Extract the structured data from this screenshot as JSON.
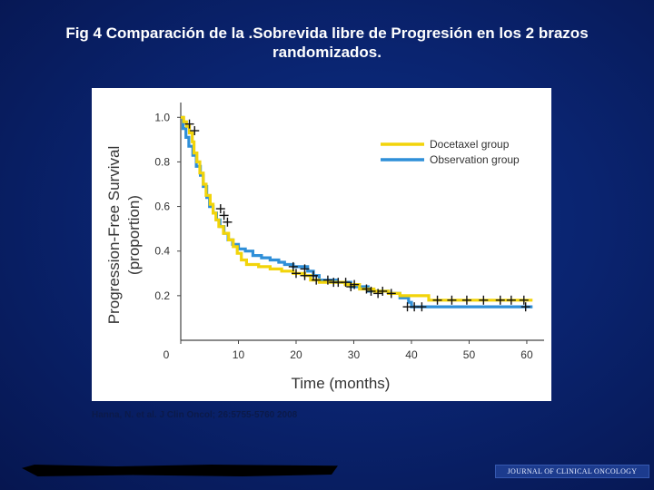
{
  "slide": {
    "title_line1": "Fig 4 Comparación de la .Sobrevida libre de Progresión  en los 2 brazos",
    "title_line2": "randomizados."
  },
  "citation": "Hanna, N. et al. J Clin Oncol; 26:5755-5760 2008",
  "journal": "JOURNAL OF CLINICAL ONCOLOGY",
  "colors": {
    "docetaxel": "#f2d40a",
    "observation": "#2f8fd8",
    "background": "#0a2470"
  },
  "chart_data": {
    "type": "line",
    "title": "",
    "xlabel": "Time (months)",
    "ylabel": "Progression-Free Survival",
    "ylabel2": "(proportion)",
    "xlim": [
      0,
      63
    ],
    "ylim": [
      0,
      1.05
    ],
    "xticks": [
      0,
      10,
      20,
      30,
      40,
      50,
      60
    ],
    "yticks": [
      0.2,
      0.4,
      0.6,
      0.8,
      1.0
    ],
    "xtick_labels": [
      "0",
      "10",
      "20",
      "30",
      "40",
      "50",
      "60"
    ],
    "ytick_labels": [
      "0.2",
      "0.4",
      "0.6",
      "0.8",
      "1.0"
    ],
    "legend_position": "top-right",
    "series": [
      {
        "name": "Docetaxel group",
        "color": "#f2d40a",
        "step_points": [
          [
            0,
            1.0
          ],
          [
            0.5,
            1.0
          ],
          [
            0.5,
            0.98
          ],
          [
            1,
            0.98
          ],
          [
            1,
            0.96
          ],
          [
            1.5,
            0.96
          ],
          [
            1.5,
            0.93
          ],
          [
            2,
            0.93
          ],
          [
            2,
            0.89
          ],
          [
            2.3,
            0.89
          ],
          [
            2.3,
            0.84
          ],
          [
            2.8,
            0.84
          ],
          [
            2.8,
            0.8
          ],
          [
            3.3,
            0.8
          ],
          [
            3.3,
            0.75
          ],
          [
            3.9,
            0.75
          ],
          [
            3.9,
            0.7
          ],
          [
            4.4,
            0.7
          ],
          [
            4.4,
            0.65
          ],
          [
            5.1,
            0.65
          ],
          [
            5.1,
            0.61
          ],
          [
            5.6,
            0.61
          ],
          [
            5.6,
            0.57
          ],
          [
            6.1,
            0.57
          ],
          [
            6.1,
            0.54
          ],
          [
            6.6,
            0.54
          ],
          [
            6.6,
            0.51
          ],
          [
            7.4,
            0.51
          ],
          [
            7.4,
            0.48
          ],
          [
            8.3,
            0.48
          ],
          [
            8.3,
            0.45
          ],
          [
            9.1,
            0.45
          ],
          [
            9.1,
            0.42
          ],
          [
            9.8,
            0.42
          ],
          [
            9.8,
            0.39
          ],
          [
            10.5,
            0.39
          ],
          [
            10.5,
            0.36
          ],
          [
            11.4,
            0.36
          ],
          [
            11.4,
            0.34
          ],
          [
            13.5,
            0.34
          ],
          [
            13.5,
            0.33
          ],
          [
            15.5,
            0.33
          ],
          [
            15.5,
            0.32
          ],
          [
            17.5,
            0.32
          ],
          [
            17.5,
            0.31
          ],
          [
            19.5,
            0.31
          ],
          [
            19.5,
            0.3
          ],
          [
            21.5,
            0.3
          ],
          [
            21.5,
            0.29
          ],
          [
            22.5,
            0.29
          ],
          [
            22.5,
            0.27
          ],
          [
            24,
            0.27
          ],
          [
            24,
            0.26
          ],
          [
            28.5,
            0.26
          ],
          [
            28.5,
            0.25
          ],
          [
            31,
            0.25
          ],
          [
            31,
            0.23
          ],
          [
            33.5,
            0.23
          ],
          [
            33.5,
            0.22
          ],
          [
            36,
            0.22
          ],
          [
            36,
            0.21
          ],
          [
            38,
            0.21
          ],
          [
            38,
            0.2
          ],
          [
            43,
            0.2
          ],
          [
            43,
            0.18
          ],
          [
            61,
            0.18
          ]
        ],
        "censor_points": [
          [
            20,
            0.3
          ],
          [
            21.5,
            0.29
          ],
          [
            23.5,
            0.27
          ],
          [
            27.3,
            0.26
          ],
          [
            28.6,
            0.26
          ],
          [
            30.1,
            0.25
          ],
          [
            32.2,
            0.23
          ],
          [
            35,
            0.22
          ],
          [
            36.5,
            0.21
          ],
          [
            44.5,
            0.18
          ],
          [
            47,
            0.18
          ],
          [
            49.6,
            0.18
          ],
          [
            52.5,
            0.18
          ],
          [
            55.4,
            0.18
          ],
          [
            57.3,
            0.18
          ],
          [
            59.5,
            0.18
          ]
        ]
      },
      {
        "name": "Observation group",
        "color": "#2f8fd8",
        "step_points": [
          [
            0,
            1.0
          ],
          [
            0.4,
            1.0
          ],
          [
            0.4,
            0.95
          ],
          [
            0.9,
            0.95
          ],
          [
            0.9,
            0.91
          ],
          [
            1.4,
            0.91
          ],
          [
            1.4,
            0.87
          ],
          [
            2.1,
            0.87
          ],
          [
            2.1,
            0.83
          ],
          [
            2.7,
            0.83
          ],
          [
            2.7,
            0.78
          ],
          [
            3.4,
            0.78
          ],
          [
            3.4,
            0.74
          ],
          [
            3.9,
            0.74
          ],
          [
            3.9,
            0.69
          ],
          [
            4.5,
            0.69
          ],
          [
            4.5,
            0.64
          ],
          [
            5,
            0.64
          ],
          [
            5,
            0.6
          ],
          [
            5.6,
            0.6
          ],
          [
            5.6,
            0.57
          ],
          [
            6.2,
            0.57
          ],
          [
            6.2,
            0.54
          ],
          [
            6.8,
            0.54
          ],
          [
            6.8,
            0.51
          ],
          [
            7.5,
            0.51
          ],
          [
            7.5,
            0.48
          ],
          [
            8.2,
            0.48
          ],
          [
            8.2,
            0.45
          ],
          [
            9,
            0.45
          ],
          [
            9,
            0.43
          ],
          [
            10,
            0.43
          ],
          [
            10,
            0.41
          ],
          [
            11.2,
            0.41
          ],
          [
            11.2,
            0.4
          ],
          [
            12.5,
            0.4
          ],
          [
            12.5,
            0.38
          ],
          [
            14,
            0.38
          ],
          [
            14,
            0.37
          ],
          [
            15.5,
            0.37
          ],
          [
            15.5,
            0.36
          ],
          [
            17,
            0.36
          ],
          [
            17,
            0.35
          ],
          [
            18,
            0.35
          ],
          [
            18,
            0.34
          ],
          [
            19.5,
            0.34
          ],
          [
            19.5,
            0.33
          ],
          [
            22,
            0.33
          ],
          [
            22,
            0.31
          ],
          [
            23,
            0.31
          ],
          [
            23,
            0.29
          ],
          [
            24,
            0.29
          ],
          [
            24,
            0.27
          ],
          [
            27,
            0.27
          ],
          [
            27,
            0.26
          ],
          [
            29.5,
            0.26
          ],
          [
            29.5,
            0.24
          ],
          [
            32.5,
            0.24
          ],
          [
            32.5,
            0.22
          ],
          [
            36,
            0.22
          ],
          [
            36,
            0.21
          ],
          [
            38,
            0.21
          ],
          [
            38,
            0.19
          ],
          [
            39.5,
            0.19
          ],
          [
            39.5,
            0.17
          ],
          [
            40,
            0.17
          ],
          [
            40,
            0.15
          ],
          [
            61,
            0.15
          ]
        ],
        "censor_points": [
          [
            1.5,
            0.97
          ],
          [
            2.4,
            0.94
          ],
          [
            6.9,
            0.59
          ],
          [
            7.5,
            0.56
          ],
          [
            8.1,
            0.53
          ],
          [
            19.5,
            0.33
          ],
          [
            21.5,
            0.32
          ],
          [
            23,
            0.29
          ],
          [
            25.5,
            0.27
          ],
          [
            26.5,
            0.26
          ],
          [
            29.5,
            0.24
          ],
          [
            33,
            0.22
          ],
          [
            34.2,
            0.21
          ],
          [
            39.3,
            0.15
          ],
          [
            40.5,
            0.15
          ],
          [
            41.8,
            0.15
          ],
          [
            59.8,
            0.15
          ]
        ]
      }
    ]
  }
}
